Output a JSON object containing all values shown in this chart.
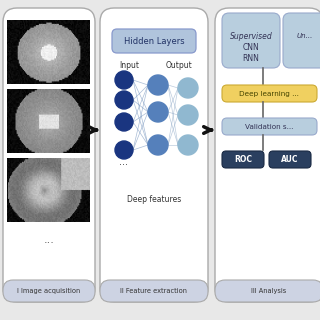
{
  "bg_color": "#e8e8e8",
  "panel1_label": "I Image acquisition",
  "panel2_label": "II Feature extraction",
  "panel3_label": "III Analysis",
  "hidden_layers_text": "Hidden Layers",
  "input_text": "Input",
  "output_text": "Output",
  "deep_features_text": "Deep features",
  "supervised_text": "Supervised",
  "cnn_rnn_text": "CNN\nRNN",
  "deep_learning_text": "Deep learning ...",
  "validation_text": "Validation s...",
  "roc_text": "ROC",
  "auc_text": "AUC",
  "panel_label_bg": "#cdd3e3",
  "hidden_box_color": "#b0c4dc",
  "supervised_box_color": "#b8cede",
  "deep_learning_box_color": "#f0d060",
  "roc_auc_box_color": "#2a3f5f",
  "input_node_color": "#1a3580",
  "hidden_node_color": "#5580bb",
  "output_node_color": "#90b8d0",
  "conn_color": "#7090bb",
  "arrow_color": "#111111"
}
